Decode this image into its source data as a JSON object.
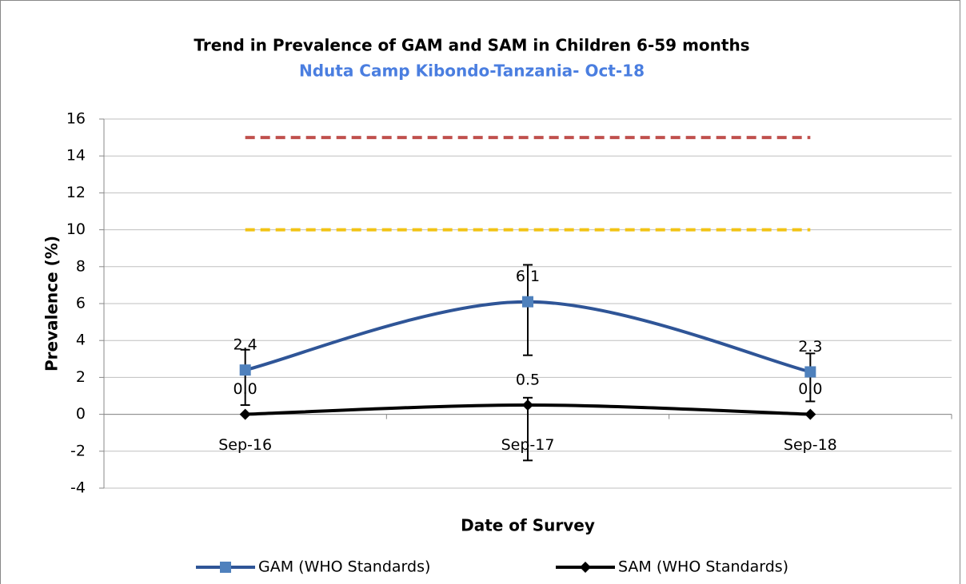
{
  "chart_data": {
    "type": "line",
    "title": "Trend in Prevalence of GAM and SAM in Children 6-59 months",
    "subtitle": "Nduta Camp Kibondo-Tanzania- Oct-18",
    "subtitle_color": "#4a7ee0",
    "x_label": "Date of Survey",
    "y_label": "Prevalence (%)",
    "categories": [
      "Sep-16",
      "Sep-17",
      "Sep-18"
    ],
    "series": [
      {
        "name": "GAM (WHO Standards)",
        "color": "#2f5597",
        "marker_color": "#4f81bd",
        "marker": "square",
        "smooth": true,
        "values": [
          2.4,
          6.1,
          2.3
        ],
        "error_bounds": [
          [
            0.5,
            3.5
          ],
          [
            3.2,
            8.1
          ],
          [
            0.7,
            3.3
          ]
        ]
      },
      {
        "name": "SAM (WHO Standards)",
        "color": "#000000",
        "marker_color": "#000000",
        "marker": "diamond",
        "smooth": true,
        "values": [
          0,
          0.5,
          0
        ],
        "value_labels": [
          "0.0",
          "0.5",
          "0.0"
        ],
        "error_bounds": [
          null,
          [
            -2.5,
            0.9
          ],
          null
        ]
      }
    ],
    "reference_lines": [
      {
        "value": 15,
        "color": "#c0504d"
      },
      {
        "value": 10,
        "color": "#f2c314"
      }
    ],
    "ylim": [
      -4,
      16
    ],
    "yticks": [
      -4,
      -2,
      0,
      2,
      4,
      6,
      8,
      10,
      12,
      14,
      16
    ],
    "grid": true,
    "legend": "bottom"
  }
}
